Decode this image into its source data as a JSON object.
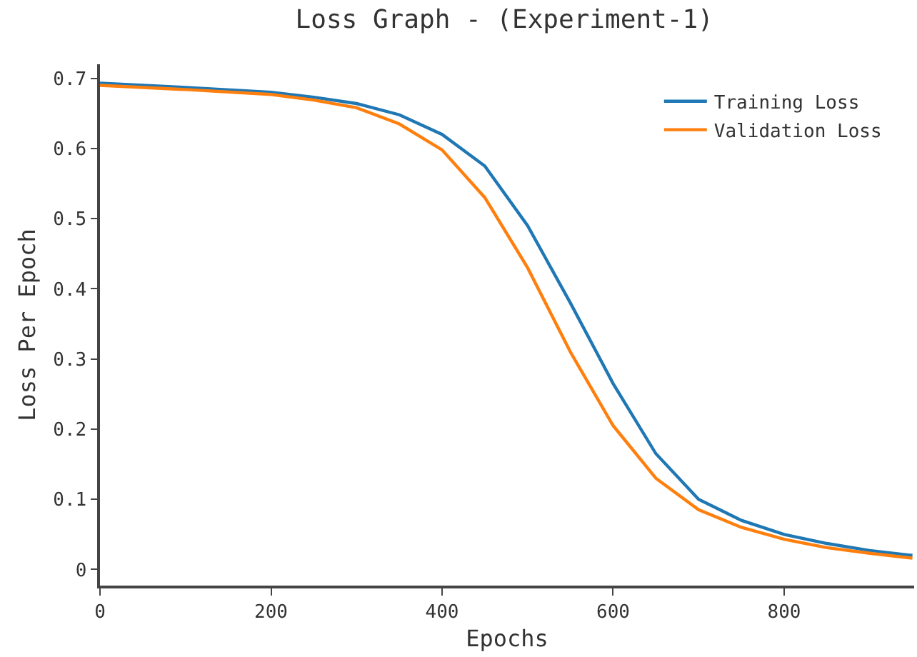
{
  "chart_data": {
    "type": "line",
    "title": "Loss Graph - (Experiment-1)",
    "xlabel": "Epochs",
    "ylabel": "Loss Per Epoch",
    "x": [
      0,
      100,
      200,
      250,
      300,
      350,
      400,
      450,
      500,
      550,
      600,
      650,
      700,
      750,
      800,
      850,
      900,
      950
    ],
    "series": [
      {
        "name": "Training Loss",
        "color": "#1f77b4",
        "values": [
          0.693,
          0.687,
          0.68,
          0.673,
          0.664,
          0.648,
          0.62,
          0.575,
          0.49,
          0.38,
          0.265,
          0.165,
          0.1,
          0.07,
          0.05,
          0.037,
          0.027,
          0.02
        ]
      },
      {
        "name": "Validation Loss",
        "color": "#ff7f0e",
        "values": [
          0.69,
          0.684,
          0.677,
          0.669,
          0.658,
          0.635,
          0.598,
          0.53,
          0.43,
          0.31,
          0.205,
          0.13,
          0.085,
          0.06,
          0.043,
          0.031,
          0.023,
          0.016
        ]
      }
    ],
    "xlim": [
      0,
      952
    ],
    "ylim": [
      -0.023,
      0.72
    ],
    "xticks": [
      0,
      200,
      400,
      600,
      800
    ],
    "yticks": [
      0,
      0.1,
      0.2,
      0.3,
      0.4,
      0.5,
      0.6,
      0.7
    ],
    "grid": false,
    "legend": "top right",
    "marker": "none",
    "line_style": "solid"
  }
}
